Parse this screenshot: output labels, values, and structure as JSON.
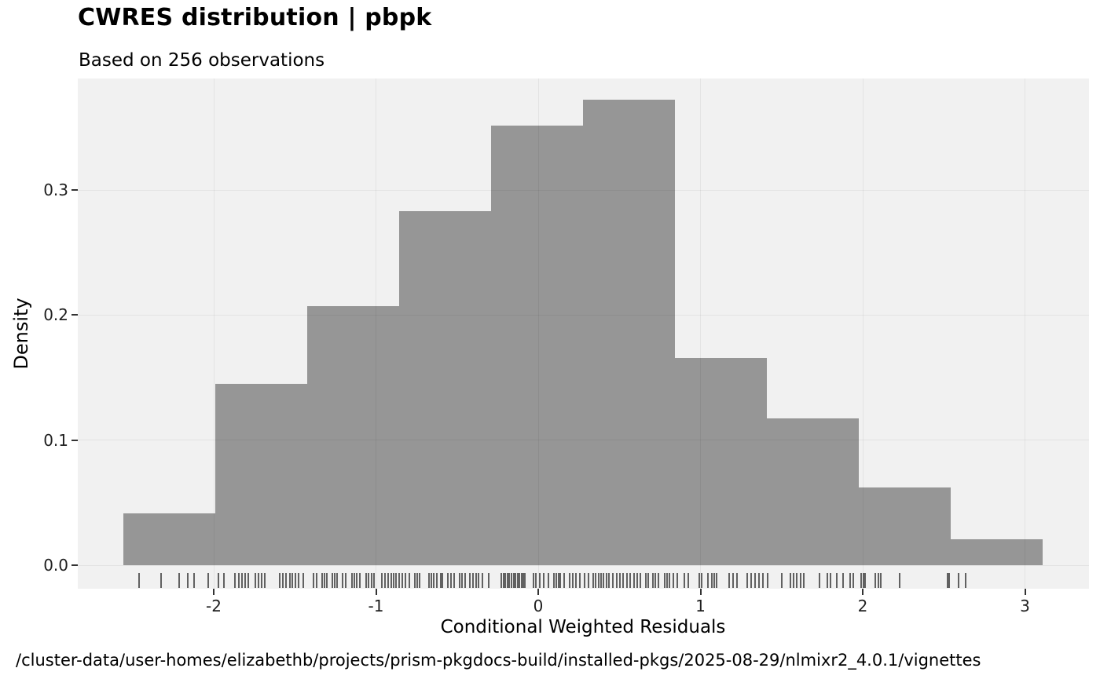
{
  "header": {
    "title": "CWRES distribution | pbpk",
    "subtitle": "Based on 256 observations"
  },
  "caption": "/cluster-data/user-homes/elizabethb/projects/prism-pkgdocs-build/installed-pkgs/2025-08-29/nlmixr2_4.0.1/vignettes",
  "chart_data": {
    "type": "bar",
    "subtype": "histogram-with-rug",
    "title": "CWRES distribution | pbpk",
    "subtitle": "Based on 256 observations",
    "xlabel": "Conditional Weighted Residuals",
    "ylabel": "Density",
    "n_observations": 256,
    "legend": "none",
    "grid": "major gridlines only",
    "xlim": [
      -2.83,
      3.39
    ],
    "ylim": [
      -0.019,
      0.389
    ],
    "x_tick_values": [
      -2,
      -1,
      0,
      1,
      2,
      3
    ],
    "x_tick_labels": [
      "-2",
      "-1",
      "0",
      "1",
      "2",
      "3"
    ],
    "y_tick_values": [
      0.0,
      0.1,
      0.2,
      0.3
    ],
    "y_tick_labels": [
      "0.0",
      "0.1",
      "0.2",
      "0.3"
    ],
    "bin_width": 0.5663,
    "bin_edges": [
      -2.556,
      -1.99,
      -1.424,
      -0.857,
      -0.291,
      0.275,
      0.841,
      1.408,
      1.974,
      2.54,
      3.107
    ],
    "counts": [
      6,
      21,
      30,
      41,
      51,
      54,
      24,
      17,
      9,
      3
    ],
    "densities": [
      0.0414,
      0.1449,
      0.2069,
      0.2828,
      0.3518,
      0.3725,
      0.1656,
      0.1173,
      0.0621,
      0.0207
    ],
    "rug_x": [
      -2.459,
      -2.324,
      -2.215,
      -2.158,
      -2.123,
      -2.034,
      -1.97,
      -1.937,
      -1.868,
      -1.847,
      -1.828,
      -1.808,
      -1.787,
      -1.745,
      -1.723,
      -1.703,
      -1.684,
      -1.594,
      -1.574,
      -1.555,
      -1.529,
      -1.517,
      -1.497,
      -1.477,
      -1.448,
      -1.387,
      -1.368,
      -1.332,
      -1.316,
      -1.302,
      -1.271,
      -1.255,
      -1.239,
      -1.206,
      -1.187,
      -1.15,
      -1.135,
      -1.118,
      -1.097,
      -1.061,
      -1.048,
      -1.029,
      -1.013,
      -0.965,
      -0.945,
      -0.924,
      -0.906,
      -0.892,
      -0.876,
      -0.857,
      -0.836,
      -0.816,
      -0.795,
      -0.759,
      -0.745,
      -0.731,
      -0.672,
      -0.657,
      -0.642,
      -0.627,
      -0.599,
      -0.591,
      -0.555,
      -0.536,
      -0.518,
      -0.486,
      -0.47,
      -0.45,
      -0.421,
      -0.402,
      -0.383,
      -0.366,
      -0.345,
      -0.305,
      -0.228,
      -0.215,
      -0.203,
      -0.19,
      -0.178,
      -0.165,
      -0.152,
      -0.14,
      -0.128,
      -0.115,
      -0.102,
      -0.09,
      -0.08,
      -0.031,
      -0.015,
      0.009,
      0.033,
      0.062,
      0.098,
      0.112,
      0.126,
      0.138,
      0.162,
      0.195,
      0.214,
      0.233,
      0.259,
      0.288,
      0.31,
      0.34,
      0.355,
      0.371,
      0.387,
      0.403,
      0.419,
      0.436,
      0.46,
      0.485,
      0.505,
      0.525,
      0.545,
      0.565,
      0.589,
      0.61,
      0.63,
      0.662,
      0.678,
      0.707,
      0.723,
      0.741,
      0.778,
      0.792,
      0.807,
      0.831,
      0.855,
      0.9,
      0.927,
      0.992,
      1.008,
      1.048,
      1.068,
      1.083,
      1.097,
      1.177,
      1.201,
      1.225,
      1.29,
      1.314,
      1.337,
      1.362,
      1.386,
      1.415,
      1.502,
      1.555,
      1.574,
      1.594,
      1.618,
      1.637,
      1.734,
      1.782,
      1.801,
      1.84,
      1.879,
      1.922,
      1.941,
      1.989,
      2.004,
      2.014,
      2.077,
      2.096,
      2.11,
      2.226,
      2.521,
      2.535,
      2.589,
      2.632
    ],
    "colors": {
      "bar_fill": "#969696",
      "panel_bg": "#f1f1f1",
      "gridline_overlay": "rgba(0,0,0,0.055)",
      "rug": "rgba(42,42,42,0.72)",
      "axis_tick": "#333333",
      "axis_text": "#1f1f1f",
      "text": "#000000"
    }
  }
}
